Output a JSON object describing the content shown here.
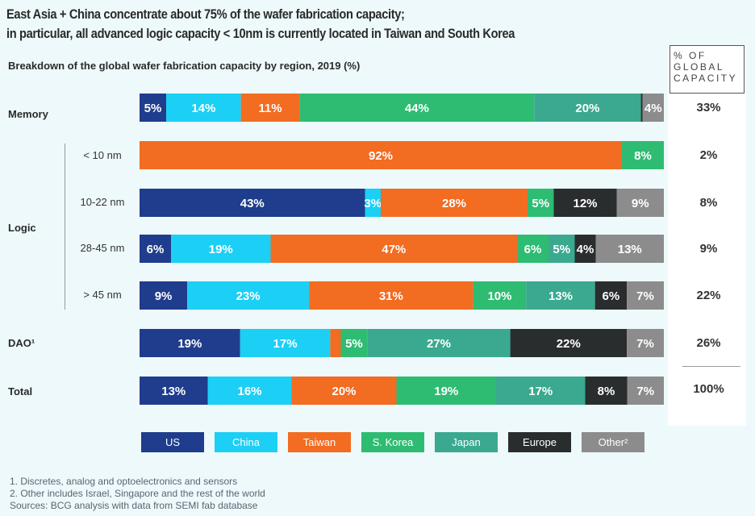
{
  "title": {
    "line1": "East Asia + China concentrate about 75% of the wafer fabrication capacity;",
    "line2": "in particular, all advanced logic capacity < 10nm is currently located in Taiwan and South Korea"
  },
  "subtitle": "Breakdown of the global wafer fabrication capacity by region, 2019 (%)",
  "share_header": [
    "% OF",
    "GLOBAL",
    "CAPACITY"
  ],
  "group_labels": {
    "memory": "Memory",
    "logic": "Logic",
    "dao": "DAO¹",
    "total": "Total"
  },
  "colors": {
    "US": "#1f3d8c",
    "China": "#1ccff5",
    "Taiwan": "#f26c22",
    "S. Korea": "#2ebc72",
    "Japan": "#3aa98f",
    "Europe": "#2a2d2e",
    "Other": "#8c8c8c"
  },
  "legend": [
    {
      "key": "US",
      "label": "US"
    },
    {
      "key": "China",
      "label": "China"
    },
    {
      "key": "Taiwan",
      "label": "Taiwan"
    },
    {
      "key": "S. Korea",
      "label": "S. Korea"
    },
    {
      "key": "Japan",
      "label": "Japan"
    },
    {
      "key": "Europe",
      "label": "Europe"
    },
    {
      "key": "Other",
      "label": "Other²"
    }
  ],
  "chart_data": {
    "type": "bar",
    "orientation": "horizontal",
    "stacked": true,
    "title": "Breakdown of the global wafer fabrication capacity by region, 2019 (%)",
    "xlim": [
      0,
      100
    ],
    "series_keys": [
      "US",
      "China",
      "Taiwan",
      "S. Korea",
      "Japan",
      "Europe",
      "Other"
    ],
    "rows": [
      {
        "group": "Memory",
        "label": "",
        "share": "33%",
        "values": {
          "US": 5,
          "China": 14,
          "Taiwan": 11,
          "S. Korea": 44,
          "Japan": 20,
          "Europe": 0.3,
          "Other": 4
        }
      },
      {
        "group": "Logic",
        "label": "< 10 nm",
        "share": "2%",
        "values": {
          "US": 0,
          "China": 0,
          "Taiwan": 92,
          "S. Korea": 8,
          "Japan": 0,
          "Europe": 0,
          "Other": 0
        }
      },
      {
        "group": "Logic",
        "label": "10-22 nm",
        "share": "8%",
        "values": {
          "US": 43,
          "China": 3,
          "Taiwan": 28,
          "S. Korea": 5,
          "Japan": 0,
          "Europe": 12,
          "Other": 9
        }
      },
      {
        "group": "Logic",
        "label": "28-45 nm",
        "share": "9%",
        "values": {
          "US": 6,
          "China": 19,
          "Taiwan": 47,
          "S. Korea": 6,
          "Japan": 5,
          "Europe": 4,
          "Other": 13
        }
      },
      {
        "group": "Logic",
        "label": "> 45 nm",
        "share": "22%",
        "values": {
          "US": 9,
          "China": 23,
          "Taiwan": 31,
          "S. Korea": 10,
          "Japan": 13,
          "Europe": 6,
          "Other": 7
        }
      },
      {
        "group": "DAO",
        "label": "",
        "share": "26%",
        "values": {
          "US": 19,
          "China": 17,
          "Taiwan": 2,
          "S. Korea": 5,
          "Japan": 27,
          "Europe": 22,
          "Other": 7
        }
      },
      {
        "group": "Total",
        "label": "",
        "share": "100%",
        "values": {
          "US": 13,
          "China": 16,
          "Taiwan": 20,
          "S. Korea": 19,
          "Japan": 17,
          "Europe": 8,
          "Other": 7
        }
      }
    ],
    "segment_labels": [
      [
        "5%",
        "14%",
        "11%",
        "44%",
        "20%",
        "",
        "4%"
      ],
      [
        "",
        "",
        "92%",
        "8%",
        "",
        "",
        ""
      ],
      [
        "43%",
        "3%",
        "28%",
        "5%",
        "",
        "12%",
        "9%"
      ],
      [
        "6%",
        "19%",
        "47%",
        "6%",
        "5%",
        "4%",
        "13%"
      ],
      [
        "9%",
        "23%",
        "31%",
        "10%",
        "13%",
        "6%",
        "7%"
      ],
      [
        "19%",
        "17%",
        "",
        "5%",
        "27%",
        "22%",
        "7%"
      ],
      [
        "13%",
        "16%",
        "20%",
        "19%",
        "17%",
        "8%",
        "7%"
      ]
    ]
  },
  "footnotes": [
    "1.  Discretes, analog and optoelectronics and sensors",
    "2. Other includes Israel, Singapore and the rest of the world",
    "Sources: BCG analysis with data from SEMI fab database"
  ]
}
